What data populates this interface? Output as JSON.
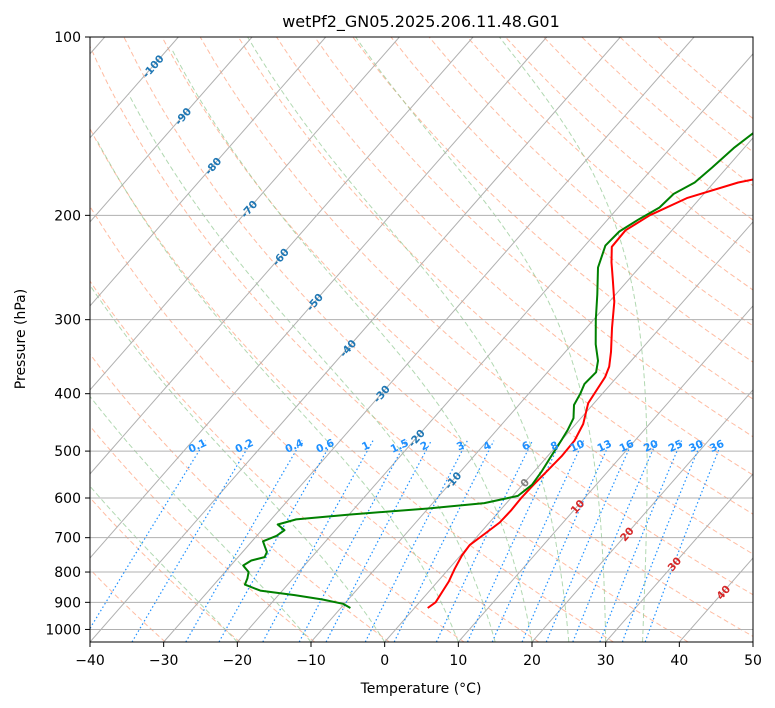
{
  "chart_data": {
    "type": "line",
    "title": "wetPf2_GN05.2025.206.11.48.G01",
    "xlabel": "Temperature (°C)",
    "ylabel": "Pressure (hPa)",
    "xlim": [
      -40,
      50
    ],
    "ylim": [
      1050,
      100
    ],
    "y_scale": "log",
    "grid": true,
    "x_ticks": [
      "-40",
      "-30",
      "-20",
      "-10",
      "0",
      "10",
      "20",
      "30",
      "40",
      "50"
    ],
    "y_ticks": [
      "100",
      "200",
      "300",
      "400",
      "500",
      "600",
      "700",
      "800",
      "900",
      "1000"
    ],
    "colors": {
      "temperature": "#ff0000",
      "dewpoint": "#008000",
      "isotherm": "#b0b0b0",
      "dry_adiabat": "#ffa07a",
      "moist_adiabat": "#90c890",
      "mixing_ratio": "#1e90ff",
      "isotherm_label": "#1f77b4",
      "positive_label": "#d62728",
      "zero_label": "#808080"
    },
    "series": [
      {
        "key": "temperature",
        "points": [
          [
            1.8,
            920
          ],
          [
            2.2,
            900
          ],
          [
            1.8,
            860
          ],
          [
            1.5,
            830
          ],
          [
            0.8,
            790
          ],
          [
            0.2,
            750
          ],
          [
            0.0,
            720
          ],
          [
            0.7,
            690
          ],
          [
            1.4,
            660
          ],
          [
            1.5,
            630
          ],
          [
            1.4,
            600
          ],
          [
            1.5,
            570
          ],
          [
            1.7,
            540
          ],
          [
            1.9,
            510
          ],
          [
            1.8,
            480
          ],
          [
            1.0,
            450
          ],
          [
            0.0,
            430
          ],
          [
            -0.8,
            415
          ],
          [
            -1.2,
            395
          ],
          [
            -1.6,
            375
          ],
          [
            -2.3,
            360
          ],
          [
            -3.8,
            340
          ],
          [
            -6.5,
            310
          ],
          [
            -9.3,
            280
          ],
          [
            -12.0,
            258
          ],
          [
            -14.4,
            240
          ],
          [
            -16.2,
            226
          ],
          [
            -16.3,
            212
          ],
          [
            -14.8,
            200
          ],
          [
            -11.8,
            187
          ],
          [
            -6.7,
            176
          ],
          [
            -0.2,
            168
          ],
          [
            4.9,
            158
          ],
          [
            8.5,
            146
          ],
          [
            12.4,
            133
          ],
          [
            15.8,
            122
          ],
          [
            19.6,
            112
          ],
          [
            24.0,
            100
          ]
        ]
      },
      {
        "key": "dewpoint",
        "points": [
          [
            -8.7,
            920
          ],
          [
            -10.2,
            905
          ],
          [
            -13.5,
            890
          ],
          [
            -17.8,
            875
          ],
          [
            -23.0,
            860
          ],
          [
            -25.8,
            840
          ],
          [
            -26.2,
            820
          ],
          [
            -26.8,
            800
          ],
          [
            -28.3,
            780
          ],
          [
            -27.8,
            765
          ],
          [
            -26.4,
            755
          ],
          [
            -26.7,
            740
          ],
          [
            -27.6,
            725
          ],
          [
            -28.5,
            710
          ],
          [
            -27.3,
            695
          ],
          [
            -26.9,
            680
          ],
          [
            -28.5,
            665
          ],
          [
            -26.6,
            652
          ],
          [
            -20.0,
            640
          ],
          [
            -10.0,
            625
          ],
          [
            -3.0,
            612
          ],
          [
            0.7,
            595
          ],
          [
            1.3,
            570
          ],
          [
            1.0,
            540
          ],
          [
            0.5,
            510
          ],
          [
            0.0,
            480
          ],
          [
            -0.4,
            460
          ],
          [
            -1.0,
            440
          ],
          [
            -2.5,
            418
          ],
          [
            -3.0,
            400
          ],
          [
            -3.6,
            385
          ],
          [
            -3.4,
            368
          ],
          [
            -4.5,
            352
          ],
          [
            -6.8,
            330
          ],
          [
            -9.7,
            300
          ],
          [
            -12.5,
            272
          ],
          [
            -15.6,
            245
          ],
          [
            -17.2,
            225
          ],
          [
            -17.0,
            213
          ],
          [
            -15.8,
            203
          ],
          [
            -14.4,
            194
          ],
          [
            -14.1,
            184
          ],
          [
            -12.6,
            176
          ],
          [
            -12.0,
            166
          ],
          [
            -11.4,
            154
          ],
          [
            -10.0,
            140
          ],
          [
            -7.2,
            128
          ],
          [
            -3.4,
            118
          ],
          [
            -0.5,
            108
          ],
          [
            1.0,
            100
          ]
        ]
      }
    ],
    "mixing_ratio_labels": [
      "0.1",
      "0.2",
      "0.4",
      "0.6",
      "1",
      "1.5",
      "2",
      "3",
      "4",
      "6",
      "8",
      "10",
      "13",
      "16",
      "20",
      "25",
      "30",
      "36"
    ],
    "isotherm_labels": [
      "-100",
      "-90",
      "-80",
      "-70",
      "-60",
      "-50",
      "-40",
      "-30",
      "-20",
      "-10",
      "0",
      "10",
      "20",
      "30",
      "40"
    ]
  }
}
